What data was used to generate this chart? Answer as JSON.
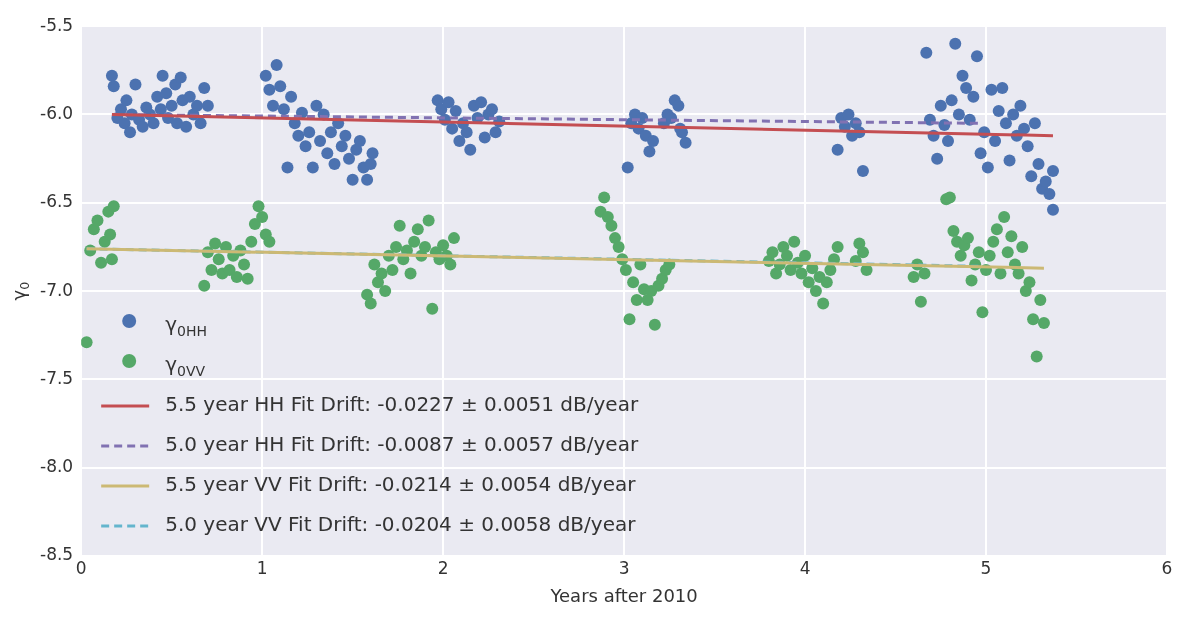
{
  "chart_data": {
    "type": "scatter",
    "xlabel": "Years after 2010",
    "ylabel": "γ$_{0}$",
    "xlim": [
      0,
      6
    ],
    "ylim": [
      -8.5,
      -5.5
    ],
    "xticks": [
      0,
      1,
      2,
      3,
      4,
      5,
      6
    ],
    "yticks": [
      -5.5,
      {
        "value": -6,
        "label": "-6.0"
      },
      -6.5,
      {
        "value": -7,
        "label": "-7.0"
      },
      -7.5,
      {
        "value": -8,
        "label": "-8.0"
      },
      -8.5
    ],
    "grid": true,
    "legend": "bottom left",
    "marker": "circle",
    "series": [
      {
        "name": "γ$_{0HH}$",
        "color": "#4c72b0",
        "x": [
          0.17,
          0.18,
          0.2,
          0.22,
          0.24,
          0.25,
          0.27,
          0.28,
          0.3,
          0.32,
          0.34,
          0.36,
          0.38,
          0.4,
          0.42,
          0.44,
          0.45,
          0.47,
          0.48,
          0.5,
          0.52,
          0.53,
          0.55,
          0.56,
          0.58,
          0.6,
          0.62,
          0.64,
          0.66,
          0.68,
          0.7,
          1.02,
          1.04,
          1.06,
          1.08,
          1.1,
          1.12,
          1.14,
          1.16,
          1.18,
          1.2,
          1.22,
          1.24,
          1.26,
          1.28,
          1.3,
          1.32,
          1.34,
          1.36,
          1.38,
          1.4,
          1.42,
          1.44,
          1.46,
          1.48,
          1.5,
          1.52,
          1.54,
          1.56,
          1.58,
          1.6,
          1.61,
          1.97,
          1.99,
          2.01,
          2.03,
          2.05,
          2.07,
          2.09,
          2.11,
          2.13,
          2.15,
          2.17,
          2.19,
          2.21,
          2.23,
          2.25,
          2.27,
          2.29,
          2.31,
          3.02,
          3.04,
          3.06,
          3.08,
          3.1,
          3.12,
          3.14,
          3.16,
          3.22,
          3.24,
          3.26,
          3.28,
          3.3,
          3.32,
          3.34,
          3.31,
          4.18,
          4.2,
          4.22,
          4.24,
          4.26,
          4.28,
          4.3,
          4.32,
          4.67,
          4.69,
          4.71,
          4.73,
          4.75,
          4.77,
          4.79,
          4.81,
          4.83,
          4.85,
          4.87,
          4.89,
          4.91,
          4.93,
          4.95,
          4.97,
          4.99,
          5.01,
          5.03,
          5.05,
          5.07,
          5.09,
          5.11,
          5.13,
          5.15,
          5.17,
          5.19,
          5.21,
          5.23,
          5.25,
          5.27,
          5.29,
          5.31,
          5.33,
          5.35,
          5.37,
          5.37
        ],
        "values": [
          -5.78,
          -5.84,
          -6.02,
          -5.97,
          -6.05,
          -5.92,
          -6.1,
          -6.0,
          -5.83,
          -6.03,
          -6.07,
          -5.96,
          -6.0,
          -6.05,
          -5.9,
          -5.97,
          -5.78,
          -5.88,
          -6.02,
          -5.95,
          -5.83,
          -6.05,
          -5.79,
          -5.92,
          -6.07,
          -5.9,
          -6.0,
          -5.95,
          -6.05,
          -5.85,
          -5.95,
          -5.78,
          -5.86,
          -5.95,
          -5.72,
          -5.84,
          -5.97,
          -6.3,
          -5.9,
          -6.05,
          -6.12,
          -5.99,
          -6.18,
          -6.1,
          -6.3,
          -5.95,
          -6.15,
          -6.0,
          -6.22,
          -6.1,
          -6.28,
          -6.05,
          -6.18,
          -6.12,
          -6.25,
          -6.37,
          -6.2,
          -6.15,
          -6.3,
          -6.37,
          -6.28,
          -6.22,
          -5.92,
          -5.97,
          -6.03,
          -5.93,
          -6.08,
          -5.98,
          -6.15,
          -6.05,
          -6.1,
          -6.2,
          -5.95,
          -6.02,
          -5.93,
          -6.13,
          -6.0,
          -5.97,
          -6.1,
          -6.04,
          -6.3,
          -6.05,
          -6.0,
          -6.08,
          -6.02,
          -6.12,
          -6.21,
          -6.15,
          -6.05,
          -6.0,
          -6.02,
          -5.92,
          -5.95,
          -6.1,
          -6.16,
          -6.08,
          -6.2,
          -6.02,
          -6.07,
          -6.0,
          -6.12,
          -6.05,
          -6.1,
          -6.32,
          -5.65,
          -6.03,
          -6.12,
          -6.25,
          -5.95,
          -6.06,
          -6.15,
          -5.92,
          -5.6,
          -6.0,
          -5.78,
          -5.85,
          -6.03,
          -5.9,
          -5.67,
          -6.22,
          -6.1,
          -6.3,
          -5.86,
          -6.15,
          -5.98,
          -5.85,
          -6.05,
          -6.26,
          -6.0,
          -6.12,
          -5.95,
          -6.08,
          -6.18,
          -6.35,
          -6.05,
          -6.28,
          -6.42,
          -6.38,
          -6.45,
          -6.32,
          -6.54
        ]
      },
      {
        "name": "γ$_{0VV}$",
        "color": "#55a868",
        "x": [
          0.03,
          0.05,
          0.07,
          0.09,
          0.11,
          0.13,
          0.15,
          0.17,
          0.18,
          0.16,
          0.68,
          0.7,
          0.72,
          0.74,
          0.76,
          0.78,
          0.8,
          0.82,
          0.84,
          0.86,
          0.88,
          0.9,
          0.92,
          0.94,
          0.96,
          0.98,
          1.0,
          1.02,
          1.04,
          1.58,
          1.6,
          1.62,
          1.64,
          1.66,
          1.68,
          1.7,
          1.72,
          1.74,
          1.76,
          1.78,
          1.8,
          1.82,
          1.84,
          1.86,
          1.88,
          1.9,
          1.92,
          1.94,
          1.96,
          1.98,
          2.0,
          2.02,
          2.04,
          2.06,
          2.87,
          2.89,
          2.91,
          2.93,
          2.95,
          2.97,
          2.99,
          3.01,
          3.03,
          3.05,
          3.07,
          3.09,
          3.11,
          3.13,
          3.15,
          3.17,
          3.19,
          3.21,
          3.23,
          3.25,
          3.8,
          3.82,
          3.84,
          3.86,
          3.88,
          3.9,
          3.92,
          3.94,
          3.96,
          3.98,
          4.0,
          4.02,
          4.04,
          4.06,
          4.08,
          4.1,
          4.12,
          4.14,
          4.16,
          4.18,
          4.3,
          4.32,
          4.34,
          4.28,
          4.6,
          4.62,
          4.64,
          4.66,
          4.78,
          4.8,
          4.82,
          4.84,
          4.86,
          4.88,
          4.9,
          4.92,
          4.94,
          4.96,
          4.98,
          5.0,
          5.02,
          5.04,
          5.06,
          5.08,
          5.1,
          5.12,
          5.14,
          5.16,
          5.18,
          5.2,
          5.22,
          5.24,
          5.26,
          5.28,
          5.3,
          5.32
        ],
        "values": [
          -7.29,
          -6.77,
          -6.65,
          -6.6,
          -6.84,
          -6.72,
          -6.55,
          -6.82,
          -6.52,
          -6.68,
          -6.97,
          -6.78,
          -6.88,
          -6.73,
          -6.82,
          -6.9,
          -6.75,
          -6.88,
          -6.8,
          -6.92,
          -6.77,
          -6.85,
          -6.93,
          -6.72,
          -6.62,
          -6.52,
          -6.58,
          -6.68,
          -6.72,
          -7.02,
          -7.07,
          -6.85,
          -6.95,
          -6.9,
          -7.0,
          -6.8,
          -6.88,
          -6.75,
          -6.63,
          -6.82,
          -6.77,
          -6.9,
          -6.72,
          -6.65,
          -6.8,
          -6.75,
          -6.6,
          -7.1,
          -6.78,
          -6.82,
          -6.74,
          -6.8,
          -6.85,
          -6.7,
          -6.55,
          -6.47,
          -6.58,
          -6.63,
          -6.7,
          -6.75,
          -6.82,
          -6.88,
          -7.16,
          -6.95,
          -7.05,
          -6.85,
          -6.99,
          -7.05,
          -7.0,
          -7.19,
          -6.97,
          -6.93,
          -6.88,
          -6.85,
          -6.83,
          -6.78,
          -6.9,
          -6.85,
          -6.75,
          -6.8,
          -6.88,
          -6.72,
          -6.84,
          -6.9,
          -6.8,
          -6.95,
          -6.87,
          -7.0,
          -6.92,
          -7.07,
          -6.95,
          -6.88,
          -6.82,
          -6.75,
          -6.73,
          -6.78,
          -6.88,
          -6.83,
          -6.92,
          -6.85,
          -7.06,
          -6.9,
          -6.48,
          -6.47,
          -6.66,
          -6.72,
          -6.8,
          -6.74,
          -6.7,
          -6.94,
          -6.85,
          -6.78,
          -7.12,
          -6.88,
          -6.8,
          -6.72,
          -6.65,
          -6.9,
          -6.58,
          -6.78,
          -6.69,
          -6.85,
          -6.9,
          -6.75,
          -7.0,
          -6.95,
          -7.16,
          -7.37,
          -7.05,
          -7.18
        ]
      },
      {
        "name": "5.5 year HH Fit Drift: -0.0227 ± 0.0051 dB/year",
        "type": "line",
        "color": "#c44e52",
        "marker": "none",
        "line_style": "solid",
        "x": [
          0.17,
          5.37
        ],
        "values": [
          -6.0,
          -6.12
        ]
      },
      {
        "name": "5.0 year HH Fit Drift: -0.0087 ± 0.0057 dB/year",
        "type": "line",
        "color": "#8172b2",
        "marker": "none",
        "line_style": "dashed",
        "x": [
          0.17,
          4.98
        ],
        "values": [
          -6.0,
          -6.05
        ]
      },
      {
        "name": "5.5 year VV Fit Drift: -0.0214 ± 0.0054 dB/year",
        "type": "line",
        "color": "#ccb974",
        "marker": "none",
        "line_style": "solid",
        "x": [
          0.03,
          5.32
        ],
        "values": [
          -6.76,
          -6.87
        ]
      },
      {
        "name": "5.0 year VV Fit Drift: -0.0204 ± 0.0058 dB/year",
        "type": "line",
        "color": "#64b5cd",
        "marker": "none",
        "line_style": "dashed",
        "x": [
          0.03,
          4.98
        ],
        "values": [
          -6.76,
          -6.86
        ]
      }
    ]
  }
}
